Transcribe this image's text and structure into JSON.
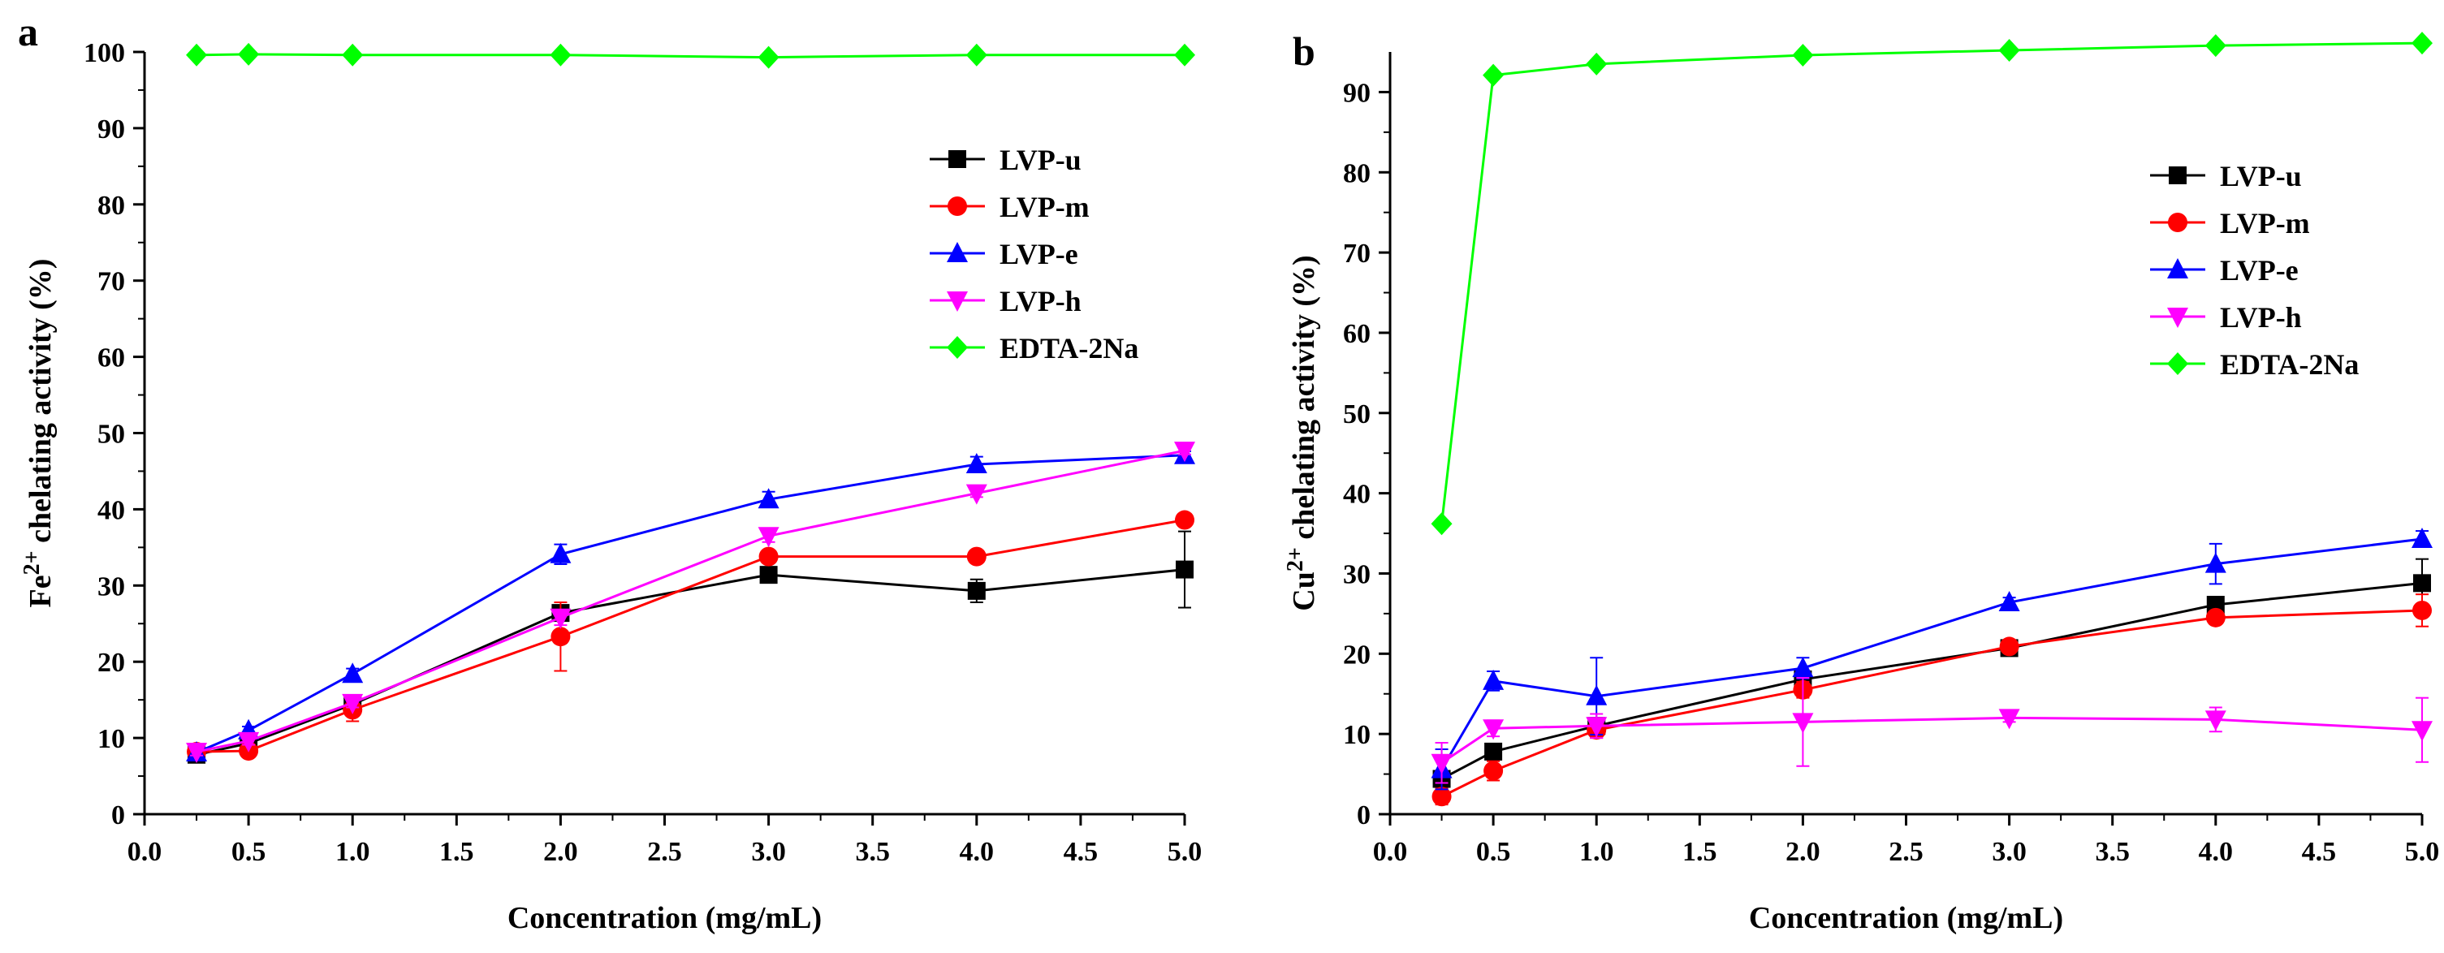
{
  "colors": {
    "LVP-u": "#000000",
    "LVP-m": "#ff0000",
    "LVP-e": "#0000ff",
    "LVP-h": "#ff00ff",
    "EDTA-2Na": "#00ff00"
  },
  "chart_data": [
    {
      "type": "line",
      "panel": "a",
      "xlabel": "Concentration (mg/mL)",
      "ylabel_prefix": "Fe",
      "ylabel_sup": "2+",
      "ylabel_suffix": " chelating activity (%)",
      "xlim": [
        0,
        5
      ],
      "ylim": [
        0,
        100
      ],
      "xticks": [
        "0.0",
        "0.5",
        "1.0",
        "1.5",
        "2.0",
        "2.5",
        "3.0",
        "3.5",
        "4.0",
        "4.5",
        "5.0"
      ],
      "yticks": [
        "0",
        "10",
        "20",
        "30",
        "40",
        "50",
        "60",
        "70",
        "80",
        "90",
        "100"
      ],
      "legend_position": "center-right",
      "x": [
        0.25,
        0.5,
        1,
        2,
        3,
        4,
        5
      ],
      "series": [
        {
          "name": "LVP-u",
          "marker": "square",
          "values": [
            7.8,
            9.3,
            14.4,
            26.4,
            31.4,
            29.3,
            32.1
          ],
          "errors": [
            0.5,
            0.5,
            0.8,
            1.0,
            0.5,
            1.5,
            5.0
          ]
        },
        {
          "name": "LVP-m",
          "marker": "circle",
          "values": [
            8.2,
            8.3,
            13.7,
            23.3,
            33.8,
            33.8,
            38.6
          ],
          "errors": [
            0.5,
            0.5,
            1.5,
            4.5,
            0.7,
            0.5,
            0.7
          ]
        },
        {
          "name": "LVP-e",
          "marker": "triangle-up",
          "values": [
            8.1,
            11.0,
            18.4,
            34.1,
            41.3,
            45.9,
            47.1
          ],
          "errors": [
            0.5,
            0.5,
            0.7,
            1.3,
            1.0,
            1.0,
            0.5
          ]
        },
        {
          "name": "LVP-h",
          "marker": "triangle-down",
          "values": [
            8.2,
            9.6,
            14.6,
            25.8,
            36.5,
            42.1,
            47.7
          ],
          "errors": [
            0.5,
            0.5,
            0.6,
            1.0,
            0.8,
            0.5,
            0.5
          ]
        },
        {
          "name": "EDTA-2Na",
          "marker": "diamond",
          "values": [
            99.6,
            99.7,
            99.6,
            99.6,
            99.3,
            99.6,
            99.6
          ],
          "errors": [
            0,
            0,
            0,
            0,
            0,
            0,
            0
          ]
        }
      ]
    },
    {
      "type": "line",
      "panel": "b",
      "xlabel": "Concentration (mg/mL)",
      "ylabel_prefix": "Cu",
      "ylabel_sup": "2+",
      "ylabel_suffix": " chelating activity (%)",
      "xlim": [
        0,
        5
      ],
      "ylim": [
        0,
        95
      ],
      "xticks": [
        "0.0",
        "0.5",
        "1.0",
        "1.5",
        "2.0",
        "2.5",
        "3.0",
        "3.5",
        "4.0",
        "4.5",
        "5.0"
      ],
      "yticks": [
        "0",
        "10",
        "20",
        "30",
        "40",
        "50",
        "60",
        "70",
        "80",
        "90"
      ],
      "legend_position": "center-right",
      "x": [
        0.25,
        0.5,
        1,
        2,
        3,
        4,
        5
      ],
      "series": [
        {
          "name": "LVP-u",
          "marker": "square",
          "values": [
            4.4,
            7.8,
            11.0,
            16.8,
            20.7,
            26.1,
            28.8
          ],
          "errors": [
            1.0,
            1.0,
            1.0,
            1.0,
            0.6,
            0.6,
            3.0
          ]
        },
        {
          "name": "LVP-m",
          "marker": "circle",
          "values": [
            2.2,
            5.4,
            10.5,
            15.5,
            20.9,
            24.5,
            25.4
          ],
          "errors": [
            1.0,
            1.2,
            1.0,
            1.0,
            0.6,
            0.6,
            2.0
          ]
        },
        {
          "name": "LVP-e",
          "marker": "triangle-up",
          "values": [
            5.6,
            16.6,
            14.7,
            18.2,
            26.4,
            31.2,
            34.3
          ],
          "errors": [
            2.5,
            1.2,
            4.8,
            1.3,
            0.6,
            2.5,
            1.0
          ]
        },
        {
          "name": "LVP-h",
          "marker": "triangle-down",
          "values": [
            6.4,
            10.7,
            11.0,
            11.5,
            12.0,
            11.8,
            10.5
          ],
          "errors": [
            2.5,
            1.0,
            1.5,
            5.5,
            0.5,
            1.5,
            4.0
          ]
        },
        {
          "name": "EDTA-2Na",
          "marker": "diamond",
          "values": [
            36.2,
            92.1,
            93.5,
            94.6,
            95.2,
            95.8,
            96.1
          ],
          "errors": [
            0,
            0,
            0,
            0,
            0,
            0,
            0
          ]
        }
      ]
    }
  ]
}
